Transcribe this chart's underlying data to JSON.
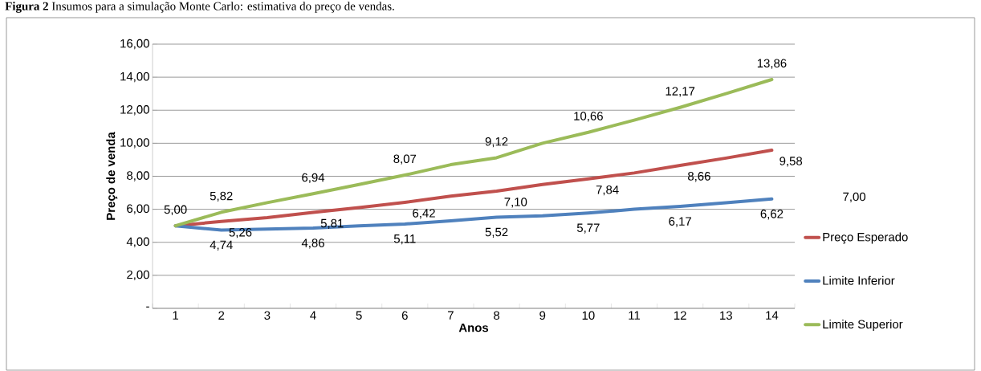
{
  "chart_data": {
    "type": "line",
    "title": "**Figura 2** Insumos para a simulação Monte Carlo: estimativa do preço de vendas.",
    "xlabel": "Anos",
    "ylabel": "Preço de venda",
    "categories": [
      "1",
      "2",
      "3",
      "4",
      "5",
      "6",
      "7",
      "8",
      "9",
      "10",
      "11",
      "12",
      "13",
      "14"
    ],
    "ylim": [
      0,
      16
    ],
    "yticks": [
      {
        "value": 0,
        "label": "-"
      },
      {
        "value": 2,
        "label": "2,00"
      },
      {
        "value": 4,
        "label": "4,00"
      },
      {
        "value": 6,
        "label": "6,00"
      },
      {
        "value": 8,
        "label": "8,00"
      },
      {
        "value": 10,
        "label": "10,00"
      },
      {
        "value": 12,
        "label": "12,00"
      },
      {
        "value": 14,
        "label": "14,00"
      },
      {
        "value": 16,
        "label": "16,00"
      }
    ],
    "grid": "y",
    "legend": "right",
    "marker": "none",
    "line_style": "solid",
    "series": [
      {
        "name": "Preço Esperado",
        "color": "#c0504d",
        "values": [
          5.0,
          5.26,
          5.5,
          5.81,
          6.1,
          6.42,
          6.8,
          7.1,
          7.5,
          7.84,
          8.2,
          8.66,
          9.1,
          9.58
        ],
        "value_labels": [
          null,
          "5,26",
          null,
          "5,81",
          null,
          "6,42",
          null,
          "7,10",
          null,
          "7,84",
          null,
          "8,66",
          null,
          "9,58"
        ]
      },
      {
        "name": "Limite Inferior",
        "color": "#4f81bd",
        "values": [
          5.0,
          4.74,
          4.8,
          4.86,
          5.0,
          5.11,
          5.3,
          5.52,
          5.6,
          5.77,
          6.0,
          6.17,
          6.4,
          6.62
        ],
        "value_labels": [
          null,
          "4,74",
          null,
          "4,86",
          null,
          "5,11",
          null,
          "5,52",
          null,
          "5,77",
          null,
          "6,17",
          null,
          "6,62"
        ]
      },
      {
        "name": "Limite Superior",
        "color": "#9bbb59",
        "values": [
          5.0,
          5.82,
          6.4,
          6.94,
          7.5,
          8.07,
          8.7,
          9.12,
          10.0,
          10.66,
          11.4,
          12.17,
          13.0,
          13.86
        ],
        "value_labels": [
          "5,00",
          "5,82",
          null,
          "6,94",
          null,
          "8,07",
          null,
          "9,12",
          null,
          "10,66",
          null,
          "12,17",
          null,
          "13,86"
        ]
      }
    ],
    "annotations": [
      "7,00"
    ]
  }
}
